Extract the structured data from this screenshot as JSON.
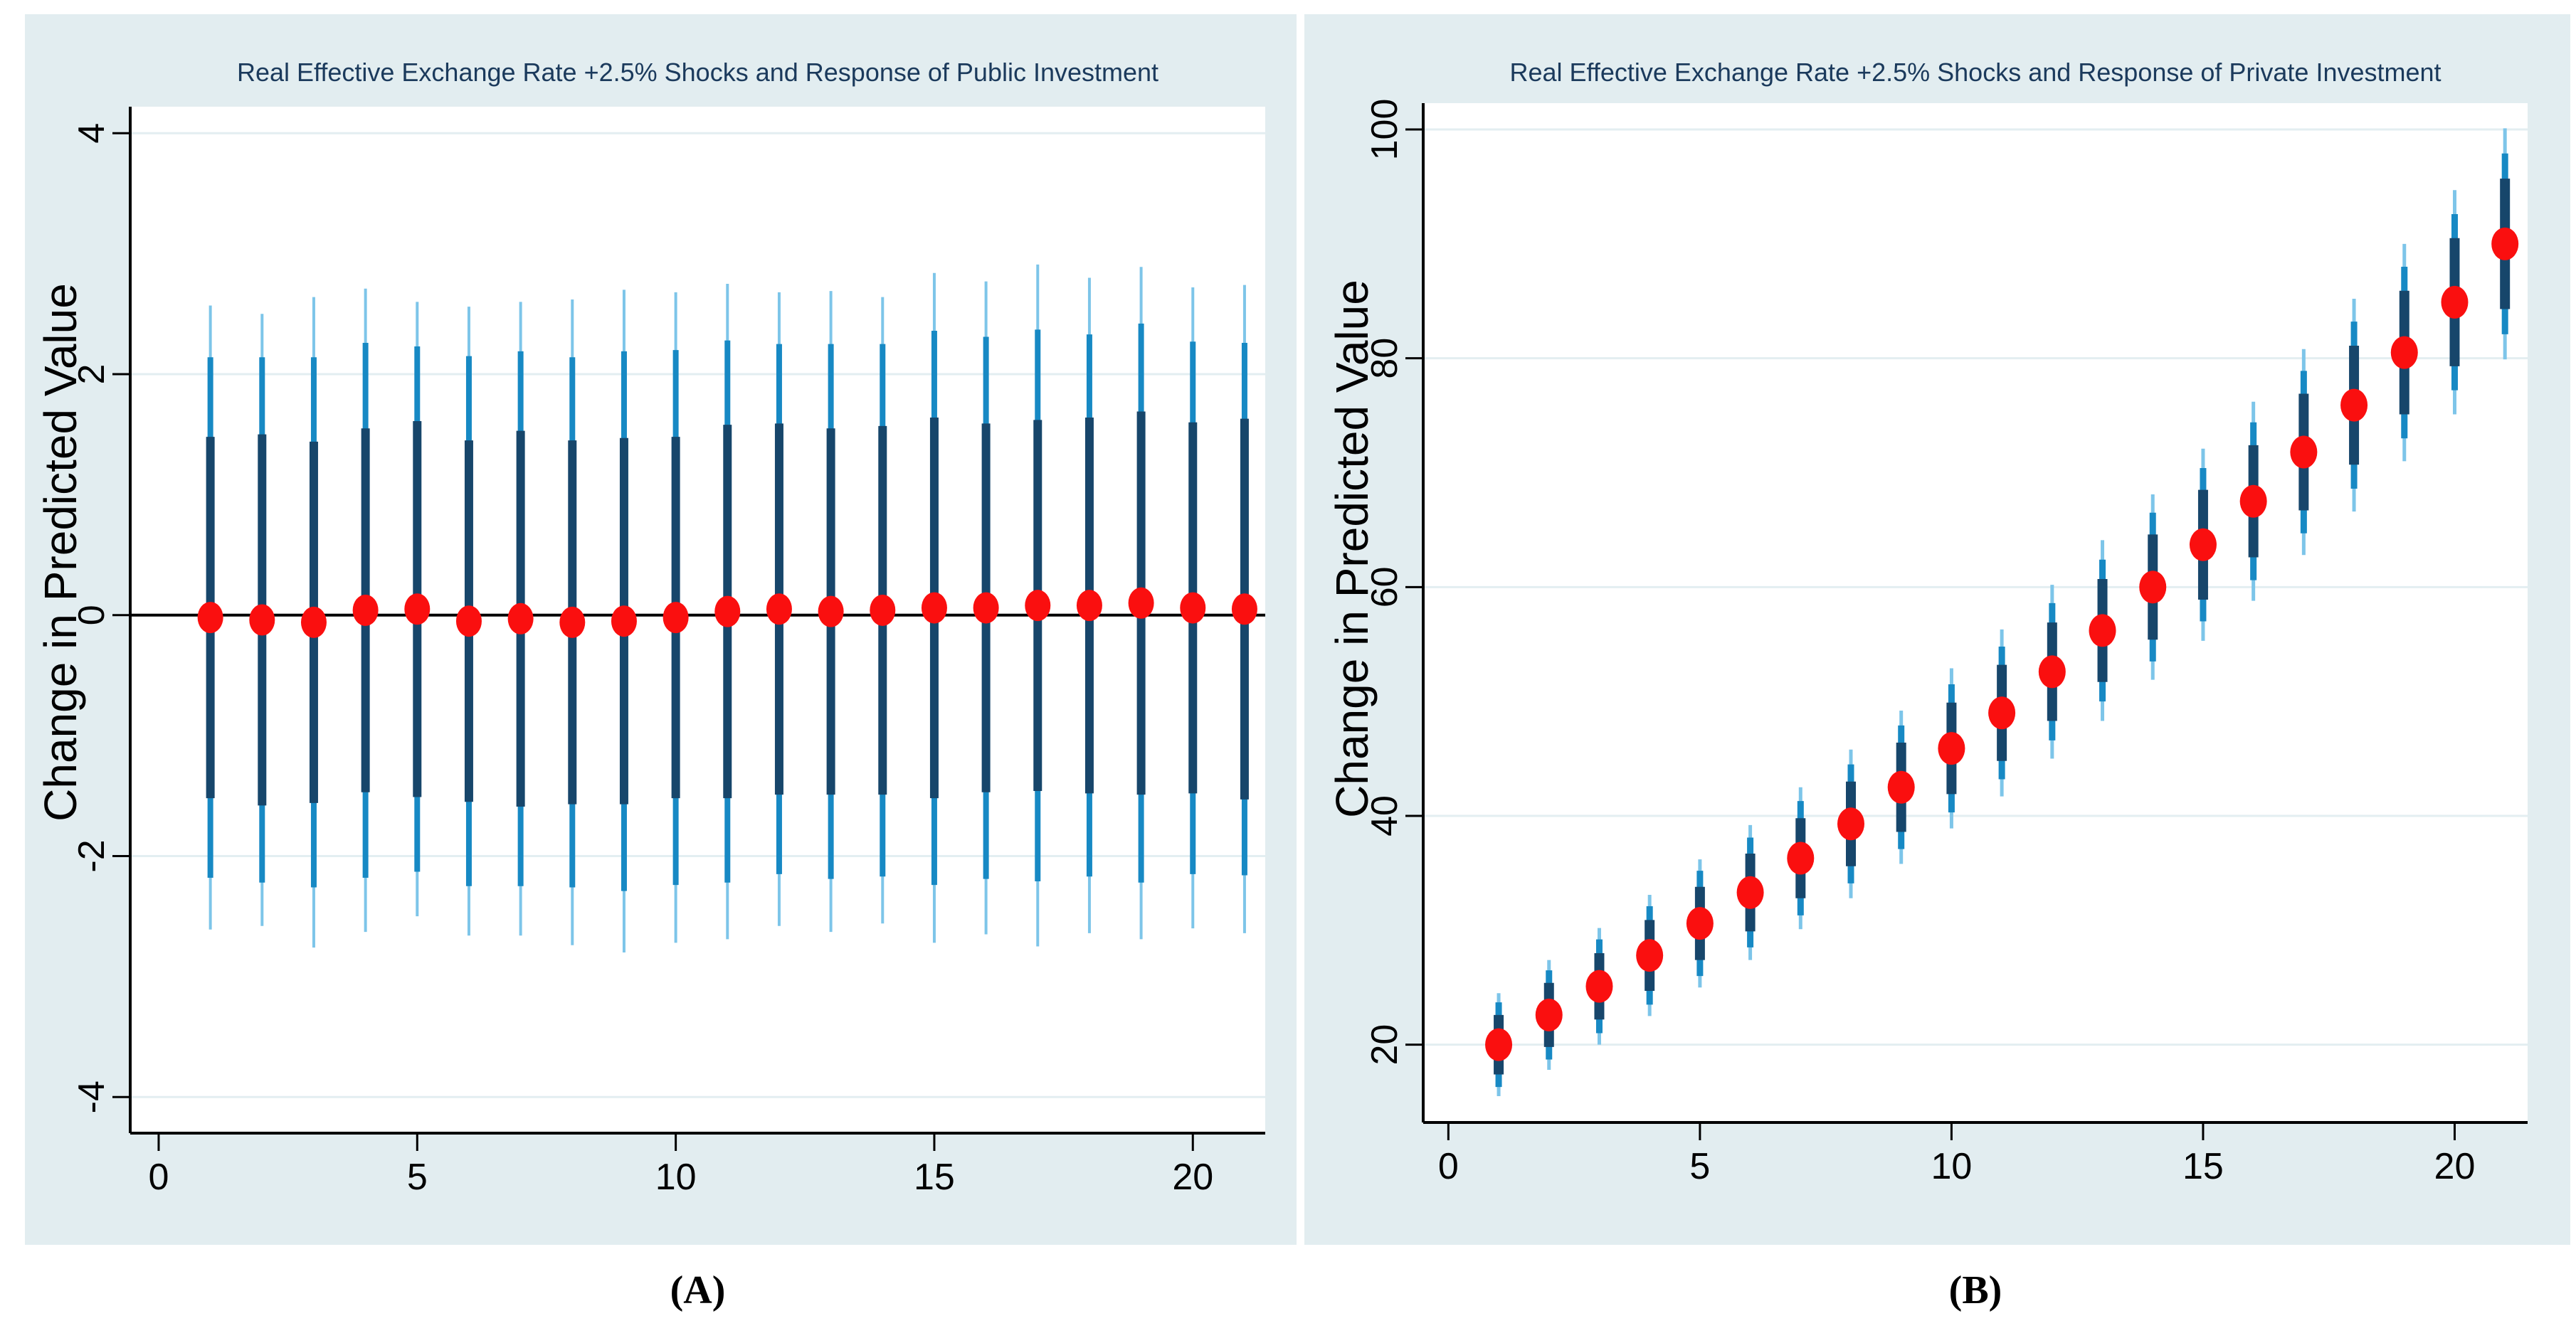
{
  "figure": {
    "panel_a_caption": "(A)",
    "panel_b_caption": "(B)"
  },
  "style": {
    "panel_bg": "#e2edf0",
    "plot_bg": "#ffffff",
    "grid_color": "#e3eef1",
    "axis_color": "#000000",
    "title_color": "#1b3a5c",
    "zero_line_color": "#000000",
    "ci_outer_color": "#7dc5e9",
    "ci_mid_color": "#1789c4",
    "ci_inner_color": "#17466b",
    "dot_color": "#fa0f0f"
  },
  "chart_data": [
    {
      "id": "A",
      "type": "scatter",
      "title": "Real Effective Exchange Rate +2.5% Shocks and Response of Public Investment",
      "xlabel": "",
      "ylabel": "Change in Predicted Value",
      "legend": "none",
      "grid": true,
      "zero_line": true,
      "xticks": [
        0,
        5,
        10,
        15,
        20
      ],
      "yticks": [
        4,
        2,
        0,
        -2,
        -4
      ],
      "xlim": [
        -0.55,
        21.4
      ],
      "ylim": [
        -4.3,
        4.22
      ],
      "x": [
        1,
        2,
        3,
        4,
        5,
        6,
        7,
        8,
        9,
        10,
        11,
        12,
        13,
        14,
        15,
        16,
        17,
        18,
        19,
        20,
        21
      ],
      "y": [
        -0.02,
        -0.04,
        -0.06,
        0.04,
        0.05,
        -0.05,
        -0.03,
        -0.06,
        -0.05,
        -0.02,
        0.03,
        0.05,
        0.03,
        0.04,
        0.06,
        0.06,
        0.08,
        0.08,
        0.1,
        0.06,
        0.05
      ],
      "ci_inner_half": [
        1.5,
        1.54,
        1.5,
        1.51,
        1.56,
        1.5,
        1.56,
        1.51,
        1.52,
        1.5,
        1.55,
        1.54,
        1.52,
        1.53,
        1.58,
        1.53,
        1.54,
        1.56,
        1.59,
        1.54,
        1.58
      ],
      "ci_mid_half": [
        2.16,
        2.18,
        2.2,
        2.22,
        2.18,
        2.2,
        2.22,
        2.2,
        2.24,
        2.22,
        2.25,
        2.2,
        2.22,
        2.21,
        2.3,
        2.25,
        2.29,
        2.25,
        2.32,
        2.21,
        2.21
      ],
      "ci_outer_half": [
        2.59,
        2.54,
        2.7,
        2.67,
        2.55,
        2.61,
        2.63,
        2.68,
        2.75,
        2.7,
        2.72,
        2.63,
        2.66,
        2.6,
        2.78,
        2.71,
        2.83,
        2.72,
        2.79,
        2.66,
        2.69
      ]
    },
    {
      "id": "B",
      "type": "scatter",
      "title": "Real Effective Exchange Rate +2.5% Shocks and Response of Private Investment",
      "xlabel": "",
      "ylabel": "Change in Predicted Value",
      "legend": "none",
      "grid": true,
      "zero_line": false,
      "xticks": [
        0,
        5,
        10,
        15,
        20
      ],
      "yticks": [
        100,
        80,
        60,
        40,
        20
      ],
      "xlim": [
        -0.5,
        21.45
      ],
      "ylim": [
        13.2,
        102.3
      ],
      "x": [
        1,
        2,
        3,
        4,
        5,
        6,
        7,
        8,
        9,
        10,
        11,
        12,
        13,
        14,
        15,
        16,
        17,
        18,
        19,
        20,
        21
      ],
      "y": [
        20.0,
        22.6,
        25.1,
        27.8,
        30.6,
        33.3,
        36.3,
        39.3,
        42.5,
        45.9,
        49.0,
        52.6,
        56.2,
        60.0,
        63.7,
        67.5,
        71.8,
        75.9,
        80.5,
        84.9,
        90.0
      ],
      "ci_inner_half": [
        2.6,
        2.8,
        2.9,
        3.1,
        3.2,
        3.4,
        3.5,
        3.7,
        3.9,
        4.0,
        4.2,
        4.3,
        4.5,
        4.6,
        4.8,
        4.9,
        5.1,
        5.2,
        5.4,
        5.6,
        5.7
      ],
      "ci_mid_half": [
        3.7,
        3.9,
        4.1,
        4.3,
        4.6,
        4.8,
        5.0,
        5.2,
        5.4,
        5.6,
        5.8,
        6.0,
        6.2,
        6.5,
        6.7,
        6.9,
        7.1,
        7.3,
        7.5,
        7.7,
        7.9
      ],
      "ci_outer_half": [
        4.5,
        4.8,
        5.1,
        5.3,
        5.6,
        5.9,
        6.2,
        6.5,
        6.7,
        7.0,
        7.3,
        7.6,
        7.9,
        8.1,
        8.4,
        8.7,
        9.0,
        9.3,
        9.5,
        9.8,
        10.1
      ]
    }
  ]
}
